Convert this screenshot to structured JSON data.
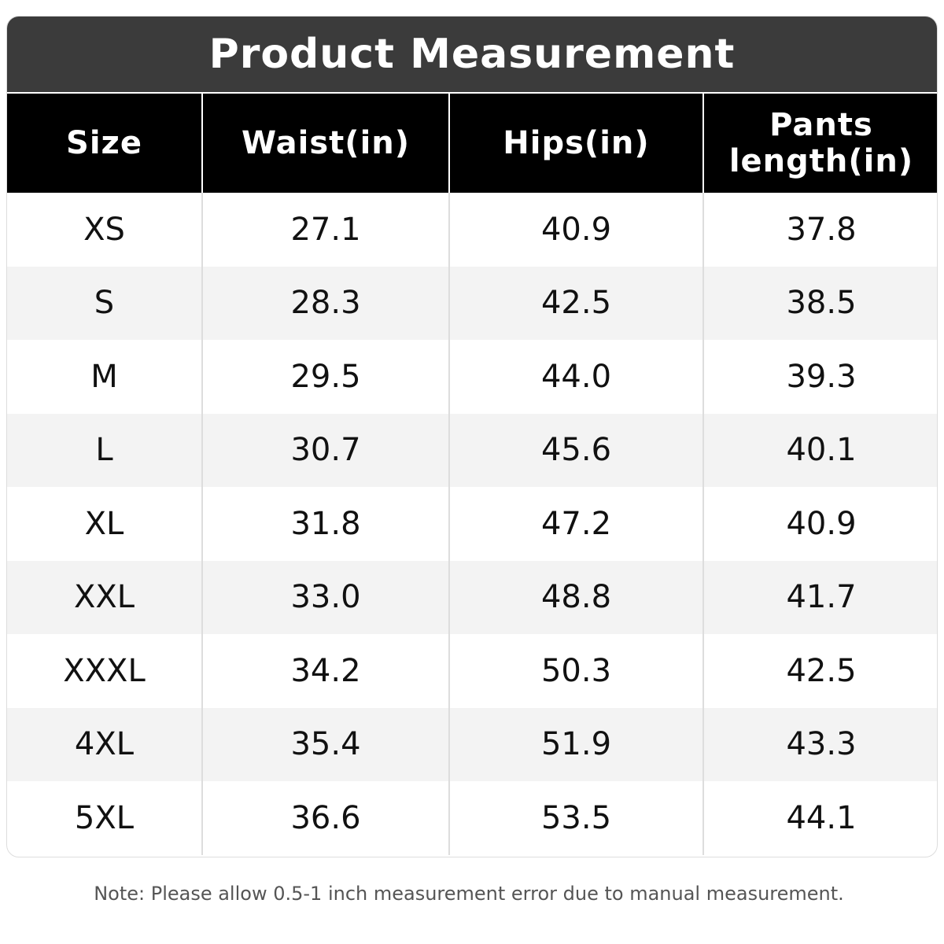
{
  "title": "Product Measurement",
  "table": {
    "header": [
      "Size",
      "Waist(in)",
      "Hips(in)",
      "Pants length(in)"
    ],
    "rows": [
      [
        "XS",
        "27.1",
        "40.9",
        "37.8"
      ],
      [
        "S",
        "28.3",
        "42.5",
        "38.5"
      ],
      [
        "M",
        "29.5",
        "44.0",
        "39.3"
      ],
      [
        "L",
        "30.7",
        "45.6",
        "40.1"
      ],
      [
        "XL",
        "31.8",
        "47.2",
        "40.9"
      ],
      [
        "XXL",
        "33.0",
        "48.8",
        "41.7"
      ],
      [
        "XXXL",
        "34.2",
        "50.3",
        "42.5"
      ],
      [
        "4XL",
        "35.4",
        "51.9",
        "43.3"
      ],
      [
        "5XL",
        "36.6",
        "53.5",
        "44.1"
      ]
    ]
  },
  "note": "Note: Please allow 0.5-1 inch measurement error due to manual measurement."
}
